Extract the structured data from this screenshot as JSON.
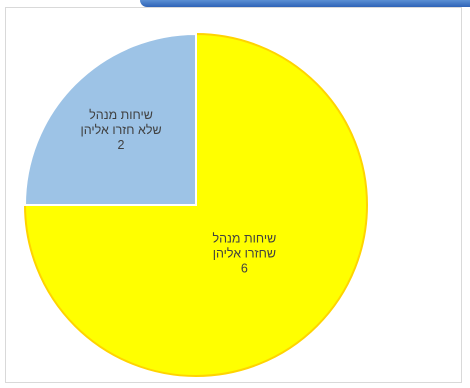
{
  "chart_data": {
    "type": "pie",
    "title": "",
    "categories": [
      "שיחות מנהל שחזרו אליהן",
      "שיחות מנהל שלא חזרו אליהן"
    ],
    "values": [
      6,
      2
    ],
    "slices": [
      {
        "label_lines": [
          "שיחות מנהל",
          "שחזרו אליהן"
        ],
        "value": 6,
        "color": "#ffff00",
        "stroke": "#ffd400"
      },
      {
        "label_lines": [
          "שיחות מנהל",
          "שלא חזרו אליהן"
        ],
        "value": 2,
        "color": "#9dc3e6",
        "stroke": "#ffffff"
      }
    ],
    "start_angle_deg": 0,
    "direction": "clockwise",
    "legend": "none"
  },
  "colors": {
    "window_accent": "#2e63b7",
    "frame_border": "#d9d9d9",
    "label_text": "#404040"
  }
}
